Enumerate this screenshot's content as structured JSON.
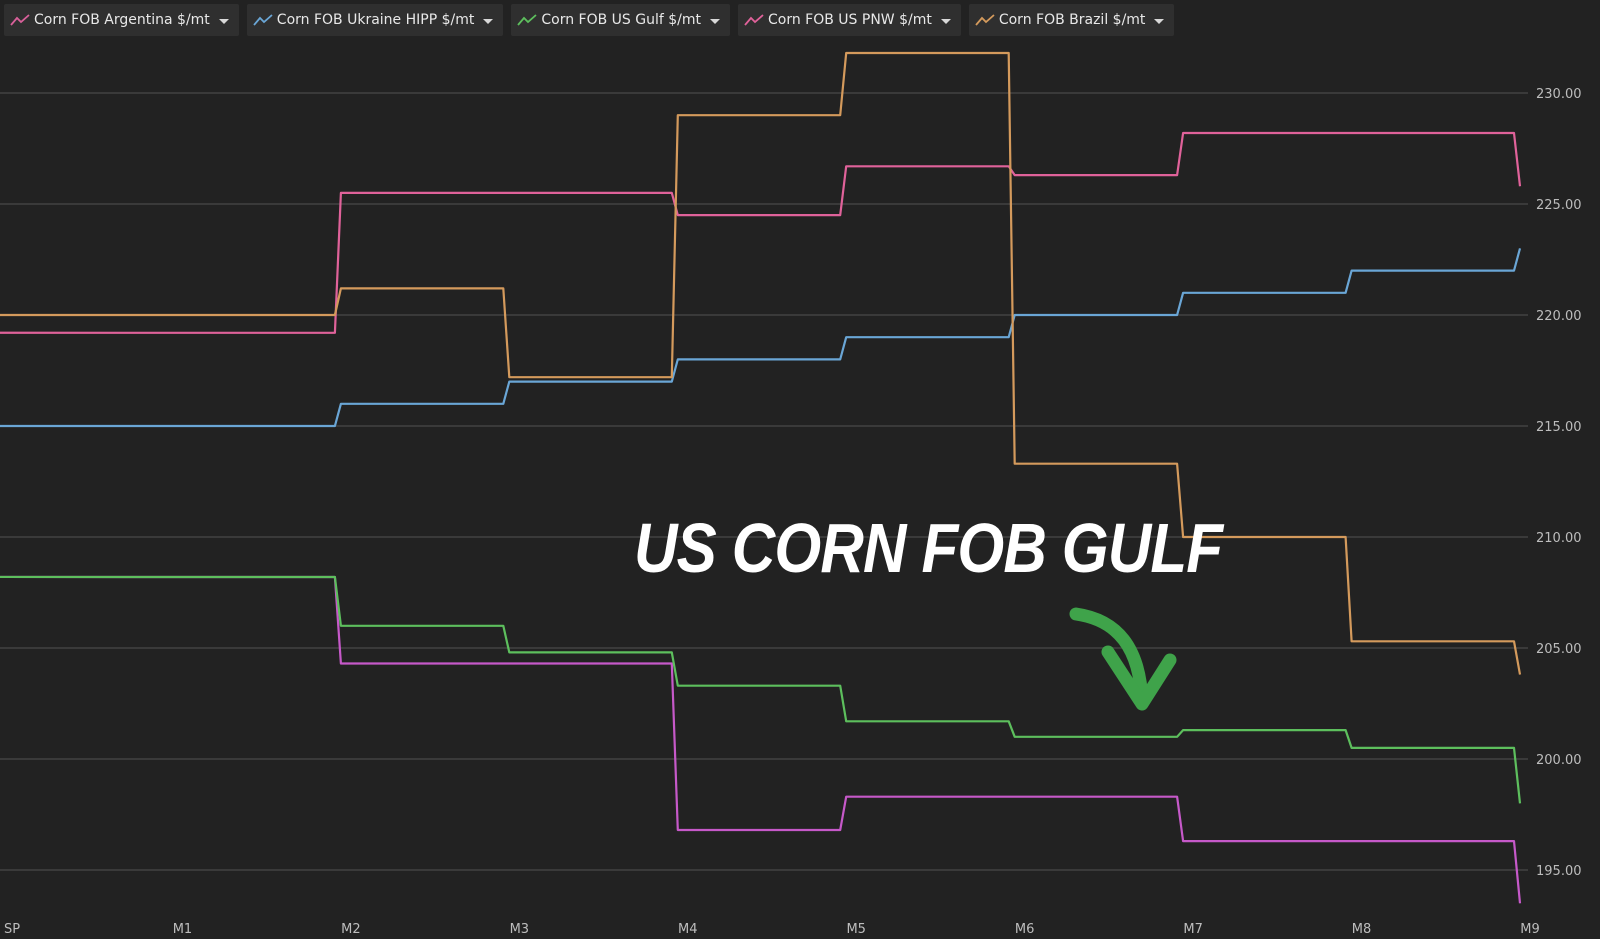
{
  "legend": [
    {
      "label": "Corn FOB Argentina $/mt",
      "color": "#d9609a",
      "icon": "line-chart-icon"
    },
    {
      "label": "Corn FOB Ukraine HIPP $/mt",
      "color": "#6aa6d6",
      "icon": "line-chart-icon"
    },
    {
      "label": "Corn FOB US Gulf $/mt",
      "color": "#5dbf5d",
      "icon": "line-chart-icon"
    },
    {
      "label": "Corn FOB US PNW $/mt",
      "color": "#e0629a",
      "icon": "line-chart-icon"
    },
    {
      "label": "Corn FOB Brazil $/mt",
      "color": "#d49a5c",
      "icon": "line-chart-icon"
    }
  ],
  "annotation": {
    "text": "US CORN FOB GULF",
    "arrow_color": "#3fa34a"
  },
  "chart_data": {
    "type": "line",
    "categories": [
      "SP",
      "M1",
      "M2",
      "M3",
      "M4",
      "M5",
      "M6",
      "M7",
      "M8",
      "M9"
    ],
    "ylim": [
      193,
      232
    ],
    "y_ticks": [
      "230.00",
      "225.00",
      "220.00",
      "215.00",
      "210.00",
      "205.00",
      "200.00",
      "195.00"
    ],
    "grid": true,
    "y_axis_position": "right",
    "series": [
      {
        "name": "Corn FOB Argentina $/mt",
        "color": "#c659c9",
        "values": [
          208.2,
          208.2,
          204.3,
          204.3,
          196.8,
          198.3,
          198.3,
          196.3,
          196.3,
          193.5
        ]
      },
      {
        "name": "Corn FOB Ukraine HIPP $/mt",
        "color": "#6aa6d6",
        "values": [
          215.0,
          215.0,
          216.0,
          217.0,
          218.0,
          219.0,
          220.0,
          221.0,
          222.0,
          223.0
        ]
      },
      {
        "name": "Corn FOB US Gulf $/mt",
        "color": "#5dbf5d",
        "values": [
          208.2,
          208.2,
          206.0,
          204.8,
          203.3,
          201.7,
          201.0,
          201.3,
          200.5,
          198.0
        ]
      },
      {
        "name": "Corn FOB US PNW $/mt",
        "color": "#e0629a",
        "values": [
          219.2,
          219.2,
          225.5,
          225.5,
          224.5,
          226.7,
          226.3,
          228.2,
          228.2,
          225.8
        ]
      },
      {
        "name": "Corn FOB Brazil $/mt",
        "color": "#d49a5c",
        "values": [
          220.0,
          220.0,
          221.2,
          217.2,
          229.0,
          231.8,
          213.3,
          210.0,
          205.3,
          203.8
        ]
      }
    ]
  }
}
